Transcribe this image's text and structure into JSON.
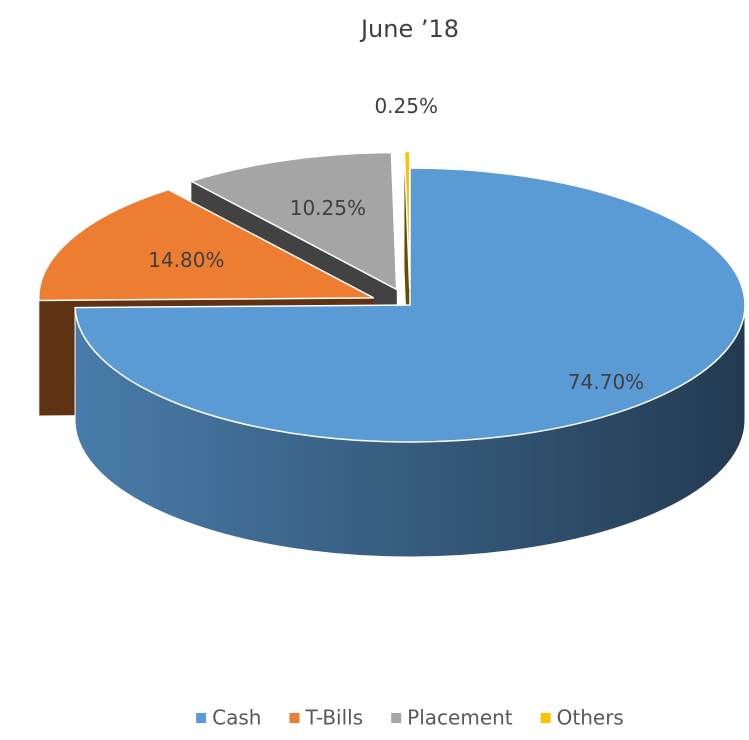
{
  "chart_data": {
    "type": "pie3d",
    "title": "June ’18",
    "categories": [
      "Cash",
      "T-Bills",
      "Placement",
      "Others"
    ],
    "series": [
      {
        "name": "Share",
        "values": [
          74.7,
          14.8,
          10.25,
          0.25
        ],
        "value_labels": [
          "74.70%",
          "14.80%",
          "10.25%",
          "0.25%"
        ],
        "colors": [
          "#5b9bd5",
          "#ed7d31",
          "#a5a5a5",
          "#ffc000"
        ]
      }
    ],
    "legend": "bottom"
  }
}
